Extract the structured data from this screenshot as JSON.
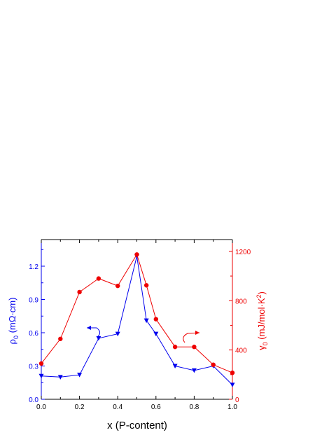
{
  "chart_data": {
    "type": "line",
    "xlabel": "x (P-content)",
    "x_ticks": [
      "0.0",
      "0.2",
      "0.4",
      "0.6",
      "0.8",
      "1.0"
    ],
    "xlim": [
      0,
      1.0
    ],
    "y_left": {
      "label_main": "ρ",
      "label_sub": "0",
      "label_rest": " (mΩ·cm)",
      "ticks": [
        "0.0",
        "0.3",
        "0.6",
        "0.9",
        "1.2"
      ],
      "ylim": [
        0,
        1.44
      ],
      "color": "#0000ee"
    },
    "y_right": {
      "label_main": "γ",
      "label_sub": "0",
      "label_mid": " (mJ/mol·K",
      "label_sup": "2",
      "label_end": ")",
      "ticks": [
        "0",
        "400",
        "800",
        "1200"
      ],
      "ylim": [
        0,
        1296
      ],
      "color": "#ee0000"
    },
    "series": [
      {
        "axis": "left",
        "marker": "triangle-down",
        "color": "#0000ee",
        "x": [
          0.0,
          0.1,
          0.2,
          0.3,
          0.4,
          0.5,
          0.55,
          0.6,
          0.7,
          0.8,
          0.9,
          1.0
        ],
        "values": [
          0.21,
          0.2,
          0.22,
          0.55,
          0.59,
          1.29,
          0.71,
          0.59,
          0.3,
          0.26,
          0.3,
          0.13
        ]
      },
      {
        "axis": "right",
        "marker": "circle",
        "color": "#ee0000",
        "x": [
          0.0,
          0.1,
          0.2,
          0.3,
          0.4,
          0.5,
          0.55,
          0.6,
          0.7,
          0.8,
          0.9,
          1.0
        ],
        "values": [
          290,
          490,
          870,
          980,
          920,
          1175,
          925,
          650,
          425,
          425,
          280,
          215
        ]
      }
    ]
  }
}
